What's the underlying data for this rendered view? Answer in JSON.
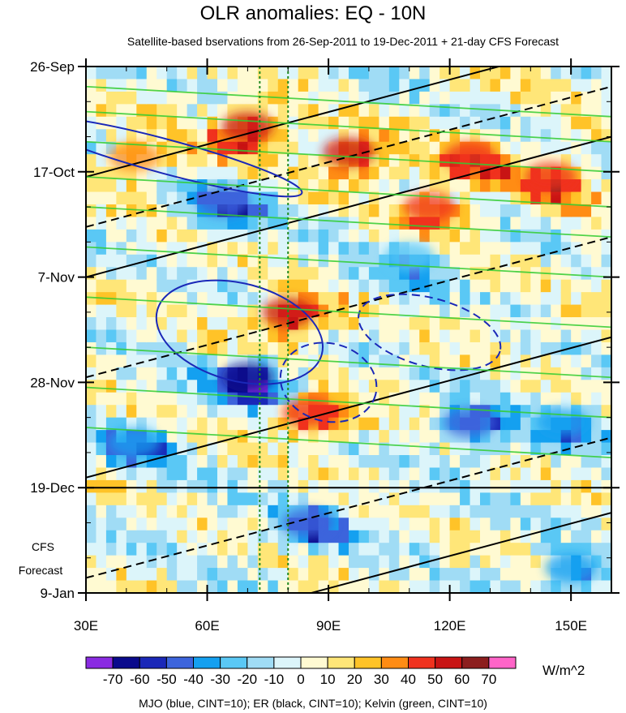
{
  "chart_data": {
    "type": "heatmap",
    "title": "OLR anomalies: EQ - 10N",
    "subtitle": "Satellite-based bservations from 26-Sep-2011 to 19-Dec-2011 + 21-day CFS Forecast",
    "x_ticks": [
      {
        "value": 30,
        "label": "30E"
      },
      {
        "value": 60,
        "label": "60E"
      },
      {
        "value": 90,
        "label": "90E"
      },
      {
        "value": 120,
        "label": "120E"
      },
      {
        "value": 150,
        "label": "150E"
      }
    ],
    "xlim": [
      30,
      160
    ],
    "ylim_days": [
      0,
      105
    ],
    "y_ticks": [
      {
        "day": 0,
        "label": "26-Sep"
      },
      {
        "day": 21,
        "label": "17-Oct"
      },
      {
        "day": 42,
        "label": "7-Nov"
      },
      {
        "day": 63,
        "label": "28-Nov"
      },
      {
        "day": 84,
        "label": "19-Dec"
      },
      {
        "day": 105,
        "label": "9-Jan"
      }
    ],
    "forecast_label": [
      "CFS",
      "Forecast"
    ],
    "forecast_start_day": 84,
    "reference_lines_lon": [
      73,
      80
    ],
    "colorbar": {
      "levels": [
        -70,
        -60,
        -50,
        -40,
        -30,
        -20,
        -10,
        0,
        10,
        20,
        30,
        40,
        50,
        60,
        70
      ],
      "colors": [
        "#8a2be2",
        "#0a0a8c",
        "#1a28b8",
        "#3c64dc",
        "#14a0f0",
        "#5ac8f5",
        "#a0dcf5",
        "#dcf5fa",
        "#fffad2",
        "#ffe678",
        "#ffc328",
        "#ff8c14",
        "#f0321e",
        "#c81414",
        "#8c1e1e",
        "#ff64c8"
      ],
      "units": "W/m^2"
    },
    "legend_note": "MJO (blue, CINT=10); ER (black, CINT=10); Kelvin (green, CINT=10)",
    "series": [
      {
        "name": "MJO",
        "color": "#1a28b8"
      },
      {
        "name": "ER",
        "color": "#000000"
      },
      {
        "name": "Kelvin",
        "color": "#32cd32"
      }
    ],
    "anomaly_blobs": [
      {
        "lon": 70,
        "day": 12,
        "value": 55
      },
      {
        "lon": 95,
        "day": 17,
        "value": 50
      },
      {
        "lon": 125,
        "day": 18,
        "value": 45
      },
      {
        "lon": 145,
        "day": 22,
        "value": 45
      },
      {
        "lon": 115,
        "day": 28,
        "value": 40
      },
      {
        "lon": 80,
        "day": 49,
        "value": 50
      },
      {
        "lon": 85,
        "day": 69,
        "value": 45
      },
      {
        "lon": 42,
        "day": 18,
        "value": 30
      },
      {
        "lon": 64,
        "day": 27,
        "value": -50
      },
      {
        "lon": 70,
        "day": 62,
        "value": -65
      },
      {
        "lon": 85,
        "day": 91,
        "value": -45
      },
      {
        "lon": 125,
        "day": 71,
        "value": -45
      },
      {
        "lon": 148,
        "day": 71,
        "value": -35
      },
      {
        "lon": 42,
        "day": 75,
        "value": -35
      },
      {
        "lon": 150,
        "day": 100,
        "value": -40
      },
      {
        "lon": 110,
        "day": 38,
        "value": -30
      }
    ]
  }
}
